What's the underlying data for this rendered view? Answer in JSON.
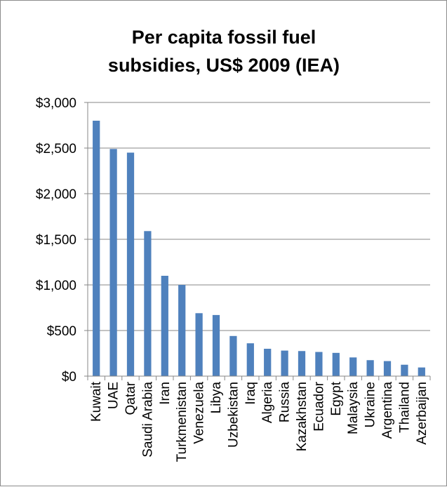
{
  "chart_data": {
    "type": "bar",
    "title_lines": [
      "Per capita fossil fuel",
      "subsidies, US$ 2009 (IEA)"
    ],
    "xlabel": "",
    "ylabel": "",
    "ylim": [
      0,
      3000
    ],
    "yticks": [
      0,
      500,
      1000,
      1500,
      2000,
      2500,
      3000
    ],
    "ytick_labels": [
      "$0",
      "$500",
      "$1,000",
      "$1,500",
      "$2,000",
      "$2,500",
      "$3,000"
    ],
    "categories": [
      "Kuwait",
      "UAE",
      "Qatar",
      "Saudi Arabia",
      "Iran",
      "Turkmenistan",
      "Venezuela",
      "Libya",
      "Uzbekistan",
      "Iraq",
      "Algeria",
      "Russia",
      "Kazakhstan",
      "Ecuador",
      "Egypt",
      "Malaysia",
      "Ukraine",
      "Argentina",
      "Thailand",
      "Azerbaijan"
    ],
    "values": [
      2800,
      2490,
      2450,
      1590,
      1100,
      1000,
      690,
      670,
      440,
      360,
      300,
      280,
      275,
      265,
      255,
      205,
      175,
      165,
      125,
      95
    ],
    "grid": true,
    "legend": "none",
    "colors": {
      "bar": "#4F81BD",
      "grid": "#878787",
      "axis": "#878787",
      "border": "#8c8c8c",
      "text": "#000000"
    }
  }
}
